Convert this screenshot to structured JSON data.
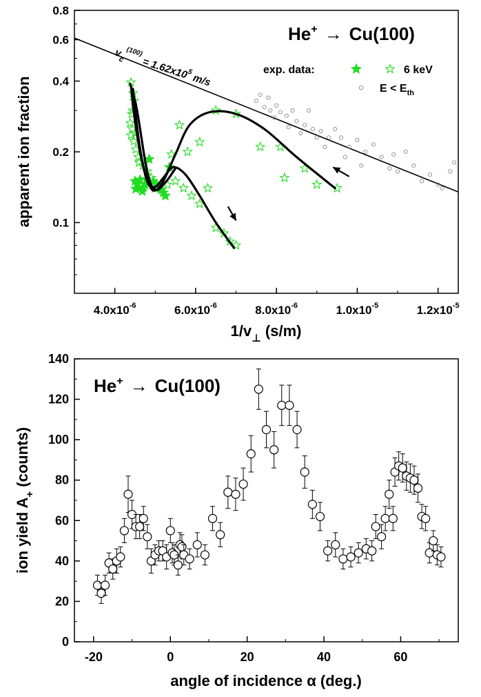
{
  "chart_data": [
    {
      "type": "scatter",
      "title": "He⁺ → Cu(100)",
      "title_parts": {
        "species": "He",
        "charge": "+",
        "arrow": "→",
        "target": "Cu(100)"
      },
      "xlabel": "1/v⊥ (s/m)",
      "xlabel_parts": {
        "main": "1/v",
        "sub": "⊥",
        "unit": " (s/m)"
      },
      "ylabel": "apparent ion fraction",
      "xlim": [
        3e-06,
        1.25e-05
      ],
      "ylim": [
        0.05,
        0.8
      ],
      "yscale": "log",
      "grid": false,
      "xticks": [
        {
          "v": 4e-06,
          "mant": "4.0x10",
          "exp": "-6"
        },
        {
          "v": 6e-06,
          "mant": "6.0x10",
          "exp": "-6"
        },
        {
          "v": 8e-06,
          "mant": "8.0x10",
          "exp": "-6"
        },
        {
          "v": 1e-05,
          "mant": "1.0x10",
          "exp": "-5"
        },
        {
          "v": 1.2e-05,
          "mant": "1.2x10",
          "exp": "-5"
        }
      ],
      "yticks": [
        {
          "v": 0.1,
          "label": "0.1"
        },
        {
          "v": 0.2,
          "label": "0.2"
        },
        {
          "v": 0.4,
          "label": "0.4"
        },
        {
          "v": 0.6,
          "label": "0.6"
        },
        {
          "v": 0.8,
          "label": "0.8"
        }
      ],
      "legend": {
        "placement": "top-right",
        "prefix": "exp. data:",
        "energy_label": "6 keV",
        "threshold_label": "E < E",
        "threshold_sub": "th"
      },
      "fit_line": {
        "label_main": "v",
        "label_sub": "c",
        "label_sup": "(100)",
        "label_value": " = 1.62x10",
        "label_exp": "5",
        "label_unit": " m/s",
        "points": [
          [
            3e-06,
            0.61
          ],
          [
            1.25e-05,
            0.135
          ]
        ]
      },
      "series": [
        {
          "marker": "filled-star",
          "color": "#22dd22",
          "points": [
            [
              4.5e-06,
              0.15
            ],
            [
              4.55e-06,
              0.146
            ],
            [
              4.62e-06,
              0.152
            ],
            [
              4.7e-06,
              0.141
            ],
            [
              4.78e-06,
              0.153
            ],
            [
              4.85e-06,
              0.147
            ],
            [
              4.95e-06,
              0.15
            ],
            [
              5.05e-06,
              0.144
            ],
            [
              5.15e-06,
              0.138
            ],
            [
              5.2e-06,
              0.134
            ],
            [
              4.68e-06,
              0.136
            ],
            [
              4.6e-06,
              0.141
            ],
            [
              5.35e-06,
              0.172
            ],
            [
              4.85e-06,
              0.186
            ],
            [
              5.25e-06,
              0.13
            ],
            [
              5e-06,
              0.14
            ],
            [
              4.52e-06,
              0.139
            ],
            [
              4.75e-06,
              0.145
            ]
          ]
        },
        {
          "marker": "open-star",
          "color": "#22dd22",
          "points": [
            [
              4.4e-06,
              0.395
            ],
            [
              4.45e-06,
              0.355
            ],
            [
              4.48e-06,
              0.33
            ],
            [
              4.42e-06,
              0.29
            ],
            [
              4.38e-06,
              0.265
            ],
            [
              4.43e-06,
              0.25
            ],
            [
              4.4e-06,
              0.235
            ],
            [
              4.47e-06,
              0.222
            ],
            [
              4.52e-06,
              0.205
            ],
            [
              4.58e-06,
              0.19
            ],
            [
              4.7e-06,
              0.175
            ],
            [
              4.8e-06,
              0.165
            ],
            [
              4.9e-06,
              0.155
            ],
            [
              5.3e-06,
              0.145
            ],
            [
              5.5e-06,
              0.15
            ],
            [
              5.7e-06,
              0.14
            ],
            [
              5.9e-06,
              0.13
            ],
            [
              6.1e-06,
              0.12
            ],
            [
              6.5e-06,
              0.095
            ],
            [
              6.7e-06,
              0.09
            ],
            [
              6.85e-06,
              0.083
            ],
            [
              7e-06,
              0.08
            ],
            [
              4.6e-06,
              0.18
            ],
            [
              5.4e-06,
              0.195
            ],
            [
              5.8e-06,
              0.2
            ],
            [
              6.3e-06,
              0.14
            ],
            [
              7e-06,
              0.29
            ],
            [
              6.5e-06,
              0.3
            ],
            [
              6.1e-06,
              0.22
            ],
            [
              7.6e-06,
              0.21
            ],
            [
              8.1e-06,
              0.21
            ],
            [
              8.7e-06,
              0.17
            ],
            [
              9e-06,
              0.145
            ],
            [
              9.5e-06,
              0.14
            ],
            [
              8.2e-06,
              0.155
            ],
            [
              5.6e-06,
              0.26
            ],
            [
              4.44e-06,
              0.3
            ],
            [
              4.5e-06,
              0.24
            ]
          ]
        },
        {
          "marker": "open-circle",
          "color": "#888888",
          "points": [
            [
              7.6e-06,
              0.35
            ],
            [
              7.8e-06,
              0.34
            ],
            [
              7.7e-06,
              0.31
            ],
            [
              7.85e-06,
              0.3
            ],
            [
              8e-06,
              0.315
            ],
            [
              8.1e-06,
              0.295
            ],
            [
              8.25e-06,
              0.285
            ],
            [
              8.4e-06,
              0.3
            ],
            [
              8.5e-06,
              0.27
            ],
            [
              8.7e-06,
              0.26
            ],
            [
              8.9e-06,
              0.25
            ],
            [
              9.1e-06,
              0.245
            ],
            [
              9.3e-06,
              0.23
            ],
            [
              9.6e-06,
              0.23
            ],
            [
              9.8e-06,
              0.21
            ],
            [
              1e-05,
              0.225
            ],
            [
              1.02e-05,
              0.2
            ],
            [
              1.04e-05,
              0.215
            ],
            [
              1.06e-05,
              0.19
            ],
            [
              1.09e-05,
              0.195
            ],
            [
              1.12e-05,
              0.2
            ],
            [
              1.14e-05,
              0.175
            ],
            [
              1.18e-05,
              0.16
            ],
            [
              1.2e-05,
              0.145
            ],
            [
              1.23e-05,
              0.165
            ],
            [
              1.24e-05,
              0.18
            ],
            [
              7.5e-06,
              0.33
            ],
            [
              7.95e-06,
              0.28
            ],
            [
              8.6e-06,
              0.24
            ],
            [
              9.2e-06,
              0.21
            ],
            [
              9.45e-06,
              0.25
            ],
            [
              9.7e-06,
              0.19
            ],
            [
              1.08e-05,
              0.17
            ],
            [
              1.16e-05,
              0.15
            ],
            [
              1.21e-05,
              0.14
            ],
            [
              8.3e-06,
              0.255
            ],
            [
              8.8e-06,
              0.3
            ],
            [
              9e-06,
              0.23
            ],
            [
              1.01e-05,
              0.175
            ],
            [
              1.1e-05,
              0.165
            ]
          ]
        }
      ],
      "trajectories": [
        [
          [
            4.4e-06,
            0.38
          ],
          [
            4.5e-06,
            0.27
          ],
          [
            4.65e-06,
            0.19
          ],
          [
            4.85e-06,
            0.145
          ],
          [
            5e-06,
            0.137
          ],
          [
            5.2e-06,
            0.15
          ],
          [
            5.5e-06,
            0.195
          ],
          [
            5.85e-06,
            0.26
          ],
          [
            6.35e-06,
            0.295
          ],
          [
            7e-06,
            0.29
          ],
          [
            7.7e-06,
            0.25
          ],
          [
            8.5e-06,
            0.19
          ],
          [
            9.45e-06,
            0.14
          ]
        ],
        [
          [
            4.45e-06,
            0.37
          ],
          [
            4.6e-06,
            0.22
          ],
          [
            4.8e-06,
            0.15
          ],
          [
            5e-06,
            0.142
          ],
          [
            5.2e-06,
            0.155
          ],
          [
            5.45e-06,
            0.172
          ],
          [
            5.75e-06,
            0.16
          ],
          [
            6.1e-06,
            0.13
          ],
          [
            6.5e-06,
            0.1
          ],
          [
            6.95e-06,
            0.078
          ]
        ],
        [
          [
            4.38e-06,
            0.39
          ],
          [
            4.55e-06,
            0.3
          ],
          [
            4.8e-06,
            0.165
          ],
          [
            5e-06,
            0.138
          ],
          [
            5.25e-06,
            0.148
          ],
          [
            5.5e-06,
            0.17
          ]
        ]
      ],
      "arrows": [
        {
          "from": [
            9.8e-06,
            0.157
          ],
          "to": [
            9.4e-06,
            0.172
          ]
        },
        {
          "from": [
            6.8e-06,
            0.117
          ],
          "to": [
            7e-06,
            0.102
          ]
        }
      ]
    },
    {
      "type": "scatter",
      "title": "He⁺ → Cu(100)",
      "title_parts": {
        "species": "He",
        "charge": "+",
        "arrow": "→",
        "target": "Cu(100)"
      },
      "xlabel": "angle of incidence α (deg.)",
      "ylabel": "ion yield A₊ (counts)",
      "ylabel_parts": {
        "main": "ion yield A",
        "sub": "+",
        "unit": " (counts)"
      },
      "xlim": [
        -25,
        75
      ],
      "ylim": [
        0,
        140
      ],
      "grid": false,
      "xticks": [
        -20,
        0,
        20,
        40,
        60
      ],
      "yticks": [
        0,
        20,
        40,
        60,
        80,
        100,
        120,
        140
      ],
      "series": [
        {
          "marker": "open-circle-errorbar",
          "points": [
            [
              -19,
              28,
              5
            ],
            [
              -18,
              24,
              5
            ],
            [
              -17,
              28,
              5
            ],
            [
              -16,
              39,
              5
            ],
            [
              -15,
              36,
              5
            ],
            [
              -14,
              40,
              6
            ],
            [
              -13,
              42,
              5
            ],
            [
              -12,
              55,
              6
            ],
            [
              -11,
              73,
              9
            ],
            [
              -10,
              63,
              7
            ],
            [
              -9,
              57,
              6
            ],
            [
              -8,
              57,
              6
            ],
            [
              -7,
              61,
              6
            ],
            [
              -6,
              52,
              6
            ],
            [
              -5,
              40,
              6
            ],
            [
              -4,
              43,
              5
            ],
            [
              -3,
              45,
              5
            ],
            [
              -2,
              45,
              5
            ],
            [
              -1,
              42,
              6
            ],
            [
              0,
              55,
              6
            ],
            [
              0.5,
              44,
              5
            ],
            [
              1,
              43,
              5
            ],
            [
              2,
              38,
              5
            ],
            [
              2.5,
              48,
              6
            ],
            [
              3,
              47,
              6
            ],
            [
              3.5,
              43,
              5
            ],
            [
              5,
              41,
              5
            ],
            [
              7,
              48,
              6
            ],
            [
              9,
              43,
              5
            ],
            [
              11,
              61,
              6
            ],
            [
              13,
              53,
              6
            ],
            [
              15,
              74,
              8
            ],
            [
              17,
              73,
              8
            ],
            [
              19,
              78,
              8
            ],
            [
              21,
              93,
              9
            ],
            [
              23,
              125,
              10
            ],
            [
              25,
              105,
              9
            ],
            [
              27,
              95,
              9
            ],
            [
              29,
              117,
              10
            ],
            [
              31,
              117,
              10
            ],
            [
              33,
              105,
              9
            ],
            [
              35,
              84,
              8
            ],
            [
              37,
              68,
              7
            ],
            [
              39,
              62,
              7
            ],
            [
              41,
              45,
              5
            ],
            [
              43,
              48,
              6
            ],
            [
              45,
              41,
              5
            ],
            [
              47,
              42,
              5
            ],
            [
              49,
              44,
              5
            ],
            [
              51,
              46,
              5
            ],
            [
              52.5,
              45,
              5
            ],
            [
              53.5,
              57,
              6
            ],
            [
              55,
              52,
              6
            ],
            [
              56,
              61,
              6
            ],
            [
              57,
              73,
              7
            ],
            [
              58,
              61,
              6
            ],
            [
              58.5,
              84,
              7
            ],
            [
              59.5,
              87,
              7
            ],
            [
              60.5,
              86,
              7
            ],
            [
              61.5,
              82,
              7
            ],
            [
              62.5,
              81,
              7
            ],
            [
              63.5,
              80,
              7
            ],
            [
              64.5,
              76,
              7
            ],
            [
              65.5,
              62,
              6
            ],
            [
              66.5,
              61,
              6
            ],
            [
              67.5,
              44,
              5
            ],
            [
              68.5,
              50,
              5
            ],
            [
              69.5,
              43,
              5
            ],
            [
              70.5,
              42,
              5
            ]
          ]
        }
      ]
    }
  ]
}
